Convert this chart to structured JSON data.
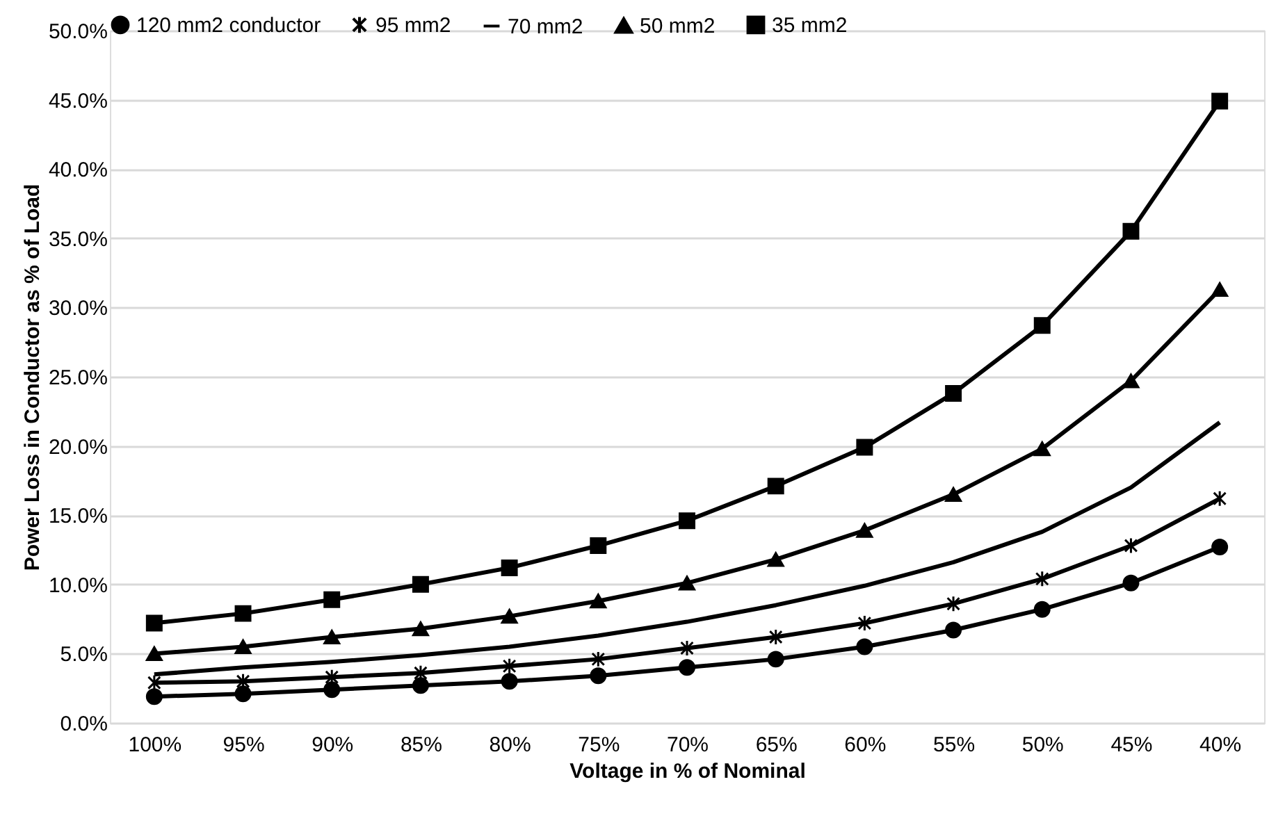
{
  "chart_data": {
    "type": "line",
    "xlabel": "Voltage in % of Nominal",
    "ylabel": "Power Loss in Conductor as % of Load",
    "categories": [
      "100%",
      "95%",
      "90%",
      "85%",
      "80%",
      "75%",
      "70%",
      "65%",
      "60%",
      "55%",
      "50%",
      "45%",
      "40%"
    ],
    "series": [
      {
        "name": "120 mm2 conductor",
        "color": "#000000",
        "marker": "circle",
        "values": [
          1.9,
          2.1,
          2.4,
          2.7,
          3.0,
          3.4,
          4.0,
          4.6,
          5.5,
          6.7,
          8.2,
          10.1,
          12.7
        ]
      },
      {
        "name": "95 mm2",
        "color": "#000000",
        "marker": "cross",
        "values": [
          2.9,
          3.0,
          3.3,
          3.6,
          4.1,
          4.6,
          5.4,
          6.2,
          7.2,
          8.6,
          10.4,
          12.8,
          16.2
        ]
      },
      {
        "name": "70 mm2",
        "color": "#000000",
        "marker": "none",
        "values": [
          3.5,
          4.0,
          4.4,
          4.9,
          5.5,
          6.3,
          7.3,
          8.5,
          9.9,
          11.6,
          13.8,
          17.0,
          21.7
        ]
      },
      {
        "name": "50 mm2",
        "color": "#000000",
        "marker": "triangle",
        "values": [
          5.0,
          5.5,
          6.2,
          6.8,
          7.7,
          8.8,
          10.1,
          11.8,
          13.9,
          16.5,
          19.8,
          24.7,
          31.3
        ]
      },
      {
        "name": "35 mm2",
        "color": "#000000",
        "marker": "square",
        "values": [
          7.2,
          7.9,
          8.9,
          10.0,
          11.2,
          12.8,
          14.6,
          17.1,
          19.9,
          23.8,
          28.7,
          35.5,
          44.9
        ]
      }
    ],
    "ylim": [
      0,
      50
    ],
    "yticks": [
      {
        "value": 0,
        "label": "0.0%"
      },
      {
        "value": 5,
        "label": "5.0%"
      },
      {
        "value": 10,
        "label": "10.0%"
      },
      {
        "value": 15,
        "label": "15.0%"
      },
      {
        "value": 20,
        "label": "20.0%"
      },
      {
        "value": 25,
        "label": "25.0%"
      },
      {
        "value": 30,
        "label": "30.0%"
      },
      {
        "value": 35,
        "label": "35.0%"
      },
      {
        "value": 40,
        "label": "40.0%"
      },
      {
        "value": 45,
        "label": "45.0%"
      },
      {
        "value": 50,
        "label": "50.0%"
      }
    ],
    "grid": "y",
    "legend": "top",
    "line_style": "solid"
  }
}
